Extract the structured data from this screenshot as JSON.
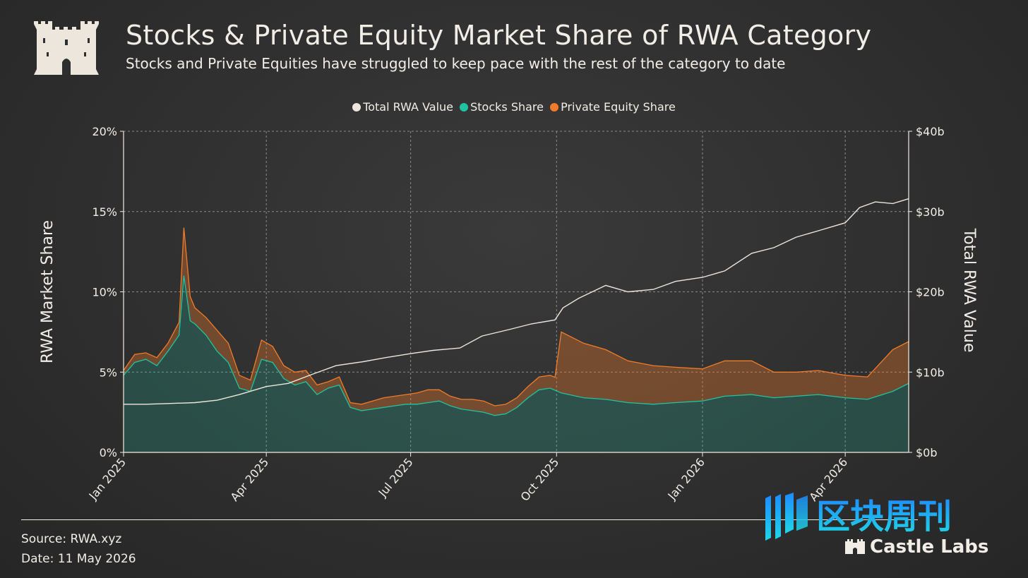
{
  "header": {
    "title": "Stocks & Private Equity Market Share of RWA Category",
    "subtitle": "Stocks and Private Equities have struggled to keep pace with the rest of the category to date"
  },
  "legend": [
    {
      "label": "Total RWA Value",
      "color": "#ece6dc"
    },
    {
      "label": "Stocks Share",
      "color": "#1fc3a2"
    },
    {
      "label": "Private Equity Share",
      "color": "#f07c2a"
    }
  ],
  "footer": {
    "source": "Source: RWA.xyz",
    "date": "Date: 11 May 2026"
  },
  "brand": {
    "watermark_text": "区块周刊",
    "name": "Castle Labs"
  },
  "chart_data": {
    "type": "area",
    "ylabel": "RWA Market Share",
    "y2label": "Total RWA Value",
    "ylim": [
      0,
      20
    ],
    "y2lim": [
      0,
      40
    ],
    "yticks": [
      "0%",
      "5%",
      "10%",
      "15%",
      "20%"
    ],
    "y2ticks": [
      "$0b",
      "$10b",
      "$20b",
      "$30b",
      "$40b"
    ],
    "xticks": [
      {
        "label": "Jan 2025",
        "x": "2025-01-01"
      },
      {
        "label": "Apr 2025",
        "x": "2025-04-01"
      },
      {
        "label": "Jul 2025",
        "x": "2025-07-01"
      },
      {
        "label": "Oct 2025",
        "x": "2025-10-01"
      },
      {
        "label": "Jan 2026",
        "x": "2026-01-01"
      },
      {
        "label": "Apr 2026",
        "x": "2026-04-01"
      }
    ],
    "xlim": [
      "2025-01-01",
      "2026-05-11"
    ],
    "grid": true,
    "legend_position": "top-center",
    "series": [
      {
        "name": "Stocks Share",
        "color": "#1fc3a2",
        "x": [
          "2025-01-01",
          "2025-01-08",
          "2025-01-15",
          "2025-01-22",
          "2025-01-29",
          "2025-02-05",
          "2025-02-08",
          "2025-02-12",
          "2025-02-15",
          "2025-02-22",
          "2025-03-01",
          "2025-03-08",
          "2025-03-15",
          "2025-03-22",
          "2025-03-29",
          "2025-04-05",
          "2025-04-12",
          "2025-04-19",
          "2025-04-26",
          "2025-05-03",
          "2025-05-10",
          "2025-05-17",
          "2025-05-24",
          "2025-05-31",
          "2025-06-07",
          "2025-06-14",
          "2025-06-21",
          "2025-06-28",
          "2025-07-05",
          "2025-07-12",
          "2025-07-19",
          "2025-07-26",
          "2025-08-02",
          "2025-08-09",
          "2025-08-16",
          "2025-08-23",
          "2025-08-30",
          "2025-09-06",
          "2025-09-13",
          "2025-09-20",
          "2025-09-27",
          "2025-10-04",
          "2025-10-18",
          "2025-11-01",
          "2025-11-15",
          "2025-12-01",
          "2025-12-15",
          "2026-01-01",
          "2026-01-15",
          "2026-02-01",
          "2026-02-15",
          "2026-03-01",
          "2026-03-15",
          "2026-04-01",
          "2026-04-15",
          "2026-05-01",
          "2026-05-11"
        ],
        "values": [
          4.8,
          5.6,
          5.8,
          5.4,
          6.3,
          7.3,
          11.0,
          8.2,
          8.0,
          7.3,
          6.3,
          5.6,
          4.0,
          3.8,
          5.8,
          5.6,
          4.6,
          4.2,
          4.4,
          3.6,
          4.0,
          4.2,
          2.8,
          2.6,
          2.7,
          2.8,
          2.9,
          3.0,
          3.0,
          3.1,
          3.2,
          2.9,
          2.7,
          2.6,
          2.5,
          2.3,
          2.4,
          2.8,
          3.4,
          3.9,
          4.0,
          3.7,
          3.4,
          3.3,
          3.1,
          3.0,
          3.1,
          3.2,
          3.5,
          3.6,
          3.4,
          3.5,
          3.6,
          3.4,
          3.3,
          3.8,
          4.3
        ]
      },
      {
        "name": "Private Equity Share",
        "color": "#f07c2a",
        "x": [
          "2025-01-01",
          "2025-01-08",
          "2025-01-15",
          "2025-01-22",
          "2025-01-29",
          "2025-02-05",
          "2025-02-08",
          "2025-02-12",
          "2025-02-15",
          "2025-02-22",
          "2025-03-01",
          "2025-03-08",
          "2025-03-15",
          "2025-03-22",
          "2025-03-29",
          "2025-04-05",
          "2025-04-12",
          "2025-04-19",
          "2025-04-26",
          "2025-05-03",
          "2025-05-10",
          "2025-05-17",
          "2025-05-24",
          "2025-05-31",
          "2025-06-07",
          "2025-06-14",
          "2025-06-21",
          "2025-06-28",
          "2025-07-05",
          "2025-07-12",
          "2025-07-19",
          "2025-07-26",
          "2025-08-02",
          "2025-08-09",
          "2025-08-16",
          "2025-08-23",
          "2025-08-30",
          "2025-09-06",
          "2025-09-13",
          "2025-09-20",
          "2025-09-27",
          "2025-09-30",
          "2025-10-04",
          "2025-10-18",
          "2025-11-01",
          "2025-11-15",
          "2025-12-01",
          "2025-12-15",
          "2026-01-01",
          "2026-01-15",
          "2026-02-01",
          "2026-02-15",
          "2026-03-01",
          "2026-03-15",
          "2026-04-01",
          "2026-04-15",
          "2026-05-01",
          "2026-05-11"
        ],
        "values": [
          0.3,
          0.5,
          0.4,
          0.5,
          0.5,
          0.8,
          3.0,
          1.5,
          1.0,
          1.1,
          1.3,
          1.2,
          0.8,
          0.7,
          1.2,
          1.0,
          0.8,
          0.8,
          0.7,
          0.6,
          0.4,
          0.5,
          0.3,
          0.4,
          0.5,
          0.6,
          0.6,
          0.6,
          0.7,
          0.8,
          0.7,
          0.6,
          0.6,
          0.7,
          0.7,
          0.6,
          0.6,
          0.6,
          0.7,
          0.8,
          0.8,
          0.8,
          3.8,
          3.4,
          3.1,
          2.6,
          2.4,
          2.2,
          2.0,
          2.2,
          2.1,
          1.6,
          1.5,
          1.5,
          1.4,
          1.4,
          2.6,
          2.6
        ]
      },
      {
        "name": "Total RWA Value",
        "axis": "right",
        "color": "#ece6dc",
        "x": [
          "2025-01-01",
          "2025-01-15",
          "2025-02-01",
          "2025-02-15",
          "2025-03-01",
          "2025-03-15",
          "2025-04-01",
          "2025-04-15",
          "2025-05-01",
          "2025-05-15",
          "2025-06-01",
          "2025-06-15",
          "2025-07-01",
          "2025-07-15",
          "2025-08-01",
          "2025-08-15",
          "2025-09-01",
          "2025-09-15",
          "2025-09-30",
          "2025-10-05",
          "2025-10-15",
          "2025-11-01",
          "2025-11-15",
          "2025-12-01",
          "2025-12-15",
          "2026-01-01",
          "2026-01-15",
          "2026-02-01",
          "2026-02-15",
          "2026-03-01",
          "2026-03-15",
          "2026-04-01",
          "2026-04-10",
          "2026-04-20",
          "2026-05-01",
          "2026-05-11"
        ],
        "values": [
          6.0,
          6.0,
          6.1,
          6.2,
          6.5,
          7.2,
          8.2,
          8.6,
          9.8,
          10.8,
          11.3,
          11.8,
          12.3,
          12.7,
          13.0,
          14.5,
          15.3,
          16.0,
          16.5,
          18.0,
          19.2,
          20.8,
          20.0,
          20.3,
          21.3,
          21.8,
          22.6,
          24.8,
          25.5,
          26.8,
          27.6,
          28.6,
          30.5,
          31.2,
          31.0,
          31.6
        ]
      }
    ]
  }
}
